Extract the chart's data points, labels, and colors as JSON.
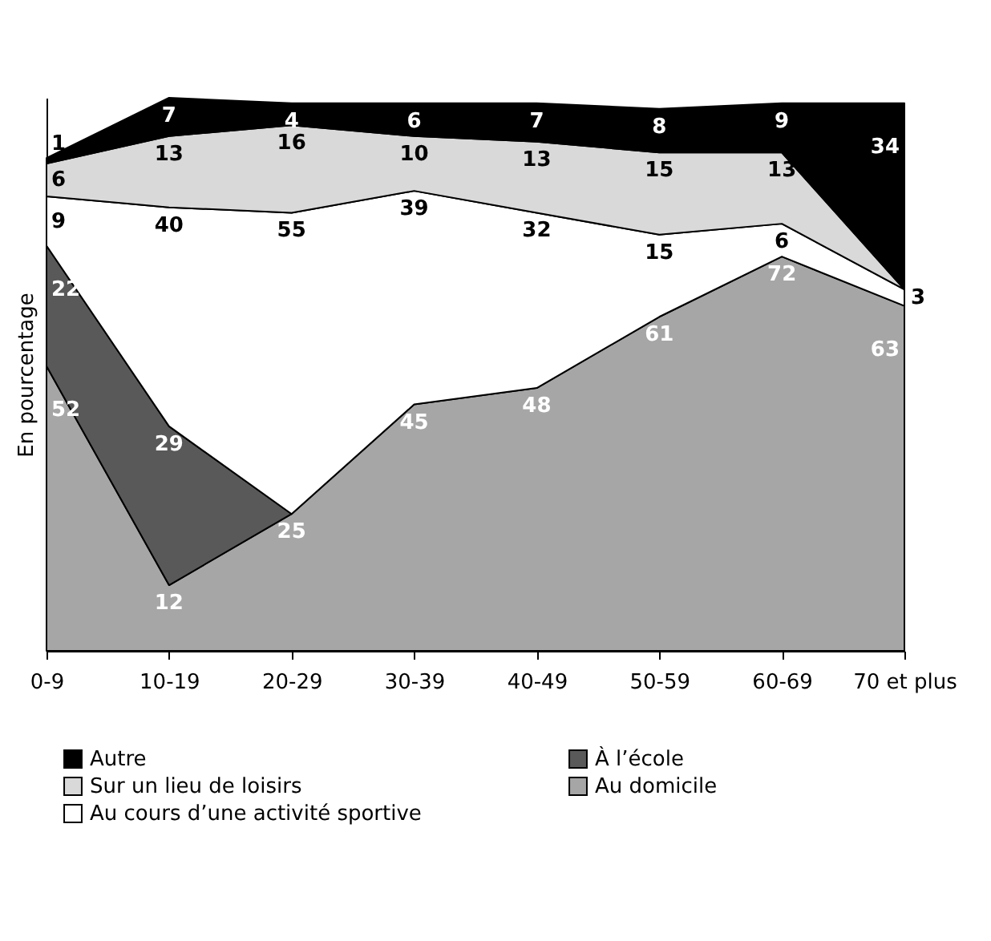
{
  "chart_data": {
    "type": "area",
    "stacked": true,
    "ylabel": "En pourcentage",
    "legend": "bottom",
    "tick_labels": "x",
    "categories": [
      "0-9",
      "10-19",
      "20-29",
      "30-39",
      "40-49",
      "50-59",
      "60-69",
      "70 et plus"
    ],
    "series": [
      {
        "name": "Au domicile",
        "color": "#a6a6a6",
        "values": [
          52,
          12,
          25,
          45,
          48,
          61,
          72,
          63
        ],
        "value_labels": [
          "52",
          "12",
          "25",
          "45",
          "48",
          "61",
          "72",
          "63"
        ]
      },
      {
        "name": "À l’école",
        "color": "#595959",
        "values": [
          22,
          29,
          0,
          null,
          null,
          null,
          null,
          null
        ],
        "value_labels": [
          "22",
          "29",
          null,
          null,
          null,
          null,
          null,
          null
        ]
      },
      {
        "name": "Au cours d’une activité sportive",
        "color": "#ffffff",
        "values": [
          9,
          40,
          55,
          39,
          32,
          15,
          6,
          3
        ],
        "value_labels": [
          "9",
          "40",
          "55",
          "39",
          "32",
          "15",
          "6",
          "3"
        ]
      },
      {
        "name": "Sur un lieu de loisirs",
        "color": "#d9d9d9",
        "values": [
          6,
          13,
          16,
          10,
          13,
          15,
          13,
          0
        ],
        "value_labels": [
          "6",
          "13",
          "16",
          "10",
          "13",
          "15",
          "13",
          null
        ]
      },
      {
        "name": "Autre",
        "color": "#000000",
        "values": [
          1,
          7,
          4,
          6,
          7,
          8,
          9,
          34
        ],
        "value_labels": [
          "1",
          "7",
          "4",
          "6",
          "7",
          "8",
          "9",
          "34"
        ]
      }
    ]
  }
}
